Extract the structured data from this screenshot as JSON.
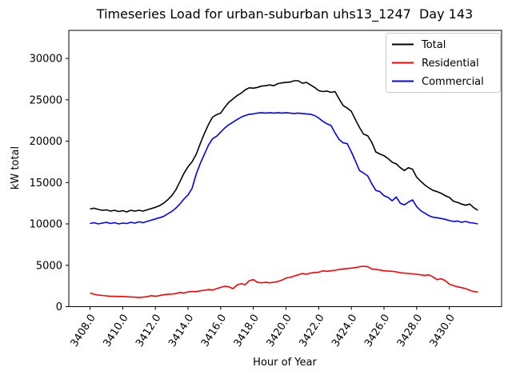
{
  "figure": {
    "title": "Timeseries Load for urban-suburban uhs13_1247  Day 143"
  },
  "chart_data": {
    "type": "line",
    "title": "Timeseries Load for urban-suburban uhs13_1247  Day 143",
    "xlabel": "Hour of Year",
    "ylabel": "kW total",
    "x_start": 3408.0,
    "x_step": 0.25,
    "xlim": [
      3406.7,
      3433.2
    ],
    "ylim": [
      0,
      33390
    ],
    "grid": false,
    "legend_position": "upper right",
    "x_tick_values": [
      3408,
      3410,
      3412,
      3414,
      3416,
      3418,
      3420,
      3422,
      3424,
      3426,
      3428,
      3430
    ],
    "x_tick_labels": [
      "3408.0",
      "3410.0",
      "3412.0",
      "3414.0",
      "3416.0",
      "3418.0",
      "3420.0",
      "3422.0",
      "3424.0",
      "3426.0",
      "3428.0",
      "3430.0"
    ],
    "y_tick_values": [
      0,
      5000,
      10000,
      15000,
      20000,
      25000,
      30000
    ],
    "y_tick_labels": [
      "0",
      "5000",
      "10000",
      "15000",
      "20000",
      "25000",
      "30000"
    ],
    "series": [
      {
        "name": "Total",
        "color": "#000000",
        "values": [
          11800,
          11900,
          11750,
          11650,
          11700,
          11550,
          11650,
          11500,
          11600,
          11450,
          11650,
          11550,
          11650,
          11550,
          11700,
          11850,
          12000,
          12200,
          12500,
          12900,
          13400,
          14100,
          15100,
          16100,
          16900,
          17500,
          18400,
          19700,
          20900,
          22000,
          22900,
          23200,
          23400,
          24100,
          24700,
          25100,
          25500,
          25800,
          26200,
          26450,
          26400,
          26500,
          26650,
          26700,
          26800,
          26700,
          26950,
          27050,
          27100,
          27150,
          27300,
          27300,
          27000,
          27100,
          26800,
          26500,
          26100,
          26000,
          26050,
          25900,
          26000,
          25100,
          24300,
          24000,
          23600,
          22600,
          21650,
          20850,
          20650,
          19850,
          18700,
          18450,
          18250,
          17900,
          17450,
          17250,
          16800,
          16450,
          16800,
          16600,
          15650,
          15150,
          14700,
          14350,
          14050,
          13900,
          13700,
          13400,
          13200,
          12750,
          12600,
          12400,
          12250,
          12400,
          11950,
          11650
        ]
      },
      {
        "name": "Residential",
        "color": "#ff0000",
        "values": [
          1650,
          1500,
          1400,
          1350,
          1300,
          1250,
          1250,
          1230,
          1230,
          1200,
          1170,
          1150,
          1100,
          1150,
          1200,
          1330,
          1260,
          1330,
          1430,
          1490,
          1520,
          1580,
          1720,
          1650,
          1780,
          1840,
          1820,
          1910,
          1970,
          2070,
          2010,
          2170,
          2330,
          2460,
          2400,
          2170,
          2620,
          2780,
          2650,
          3140,
          3270,
          2940,
          2880,
          2940,
          2880,
          2940,
          3040,
          3200,
          3460,
          3530,
          3690,
          3850,
          4010,
          3910,
          4070,
          4120,
          4170,
          4330,
          4270,
          4330,
          4400,
          4480,
          4560,
          4610,
          4660,
          4720,
          4820,
          4880,
          4820,
          4560,
          4500,
          4430,
          4330,
          4300,
          4270,
          4200,
          4100,
          4050,
          4010,
          3960,
          3910,
          3850,
          3780,
          3850,
          3590,
          3270,
          3370,
          3140,
          2720,
          2550,
          2400,
          2300,
          2170,
          1970,
          1840,
          1750
        ]
      },
      {
        "name": "Commercial",
        "color": "#0000ff",
        "values": [
          10050,
          10150,
          10000,
          10100,
          10200,
          10050,
          10150,
          10000,
          10100,
          10050,
          10200,
          10100,
          10250,
          10150,
          10300,
          10450,
          10600,
          10750,
          10900,
          11200,
          11500,
          11900,
          12400,
          13000,
          13500,
          14300,
          16000,
          17300,
          18400,
          19500,
          20300,
          20600,
          21100,
          21600,
          22000,
          22300,
          22600,
          22900,
          23100,
          23250,
          23300,
          23400,
          23450,
          23400,
          23450,
          23400,
          23450,
          23400,
          23450,
          23400,
          23350,
          23400,
          23350,
          23300,
          23250,
          23100,
          22800,
          22400,
          22100,
          21900,
          21000,
          20200,
          19800,
          19700,
          18700,
          17600,
          16450,
          16150,
          15800,
          14850,
          14050,
          13900,
          13400,
          13200,
          12800,
          13250,
          12500,
          12300,
          12650,
          12900,
          12100,
          11600,
          11300,
          11000,
          10800,
          10750,
          10650,
          10550,
          10400,
          10300,
          10350,
          10200,
          10300,
          10150,
          10100,
          10000
        ]
      }
    ]
  }
}
